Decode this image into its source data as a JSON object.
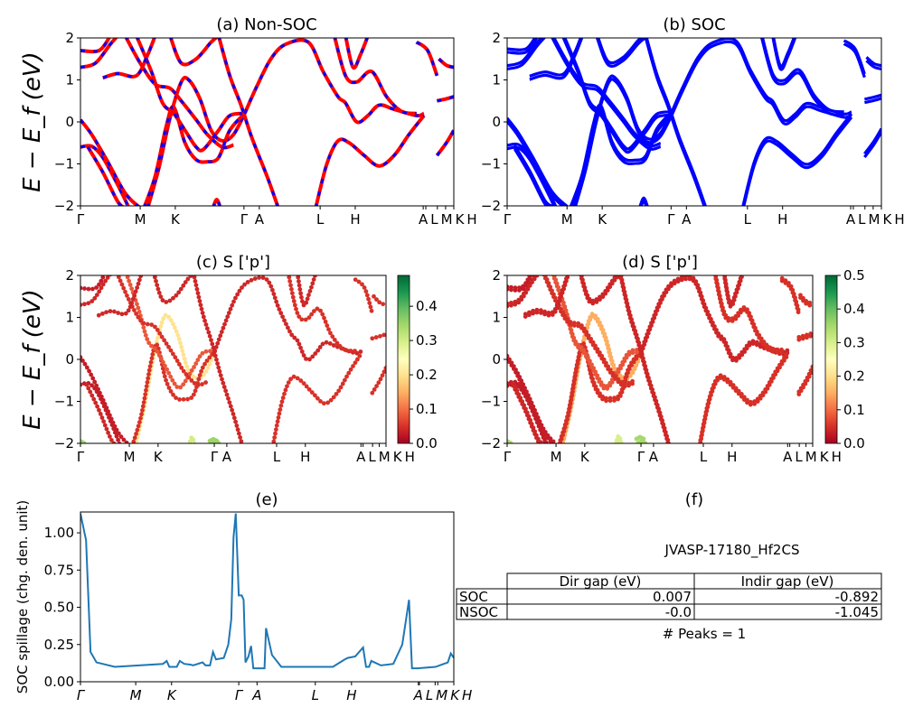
{
  "titles": {
    "a": "(a) Non-SOC",
    "b": "(b) SOC",
    "c": "(c)  S ['p']",
    "d": "(d) S ['p']",
    "e": "(e)",
    "f": "(f)"
  },
  "band_ylabel": "E − E_f (eV)",
  "spillage_ylabel": "SOC spillage (chg. den. unit)",
  "info": {
    "material": "JVASP-17180_Hf2CS",
    "table": {
      "columns": [
        "Dir gap (eV)",
        "Indir gap (eV)"
      ],
      "rows": [
        {
          "label": "SOC",
          "values": [
            "0.007",
            "-0.892"
          ]
        },
        {
          "label": "NSOC",
          "values": [
            "-0.0",
            "-1.045"
          ]
        }
      ]
    },
    "peaks": "# Peaks = 1"
  },
  "colors": {
    "nonsoc_line": "#ff0000",
    "nonsoc_dash": "#0000ff",
    "soc_line": "#0000ff",
    "spillage": "#1f77b4",
    "colormap": "RdYlGn"
  },
  "chart_data": [
    {
      "panel": "a",
      "type": "line",
      "title": "(a) Non-SOC",
      "ylabel": "E − E_f (eV)",
      "ylim": [
        -2,
        2
      ],
      "yticks": [
        "−2",
        "−1",
        "0",
        "1",
        "2"
      ],
      "ytick_values": [
        -2,
        -1,
        0,
        1,
        2
      ],
      "xticks": [
        {
          "k": 0,
          "label": "Γ"
        },
        {
          "k": 0.16,
          "label": "M"
        },
        {
          "k": 0.254,
          "label": "K"
        },
        {
          "k": 0.438,
          "label": "Γ"
        },
        {
          "k": 0.479,
          "label": "A"
        },
        {
          "k": 0.642,
          "label": "L"
        },
        {
          "k": 0.736,
          "label": "H"
        },
        {
          "k": 0.918,
          "label": "A"
        },
        {
          "k": 0.925,
          "label": "L"
        },
        {
          "k": 0.956,
          "label": "M"
        },
        {
          "k": 0.978,
          "label": "K"
        },
        {
          "k": 1.0,
          "label": "H"
        }
      ],
      "bands": [
        [
          [
            0,
            -0.6
          ],
          [
            0.03,
            -0.58
          ],
          [
            0.06,
            -0.85
          ],
          [
            0.1,
            -1.5
          ],
          [
            0.13,
            -2.05
          ]
        ],
        [
          [
            0,
            0.05
          ],
          [
            0.03,
            -0.3
          ],
          [
            0.07,
            -0.9
          ],
          [
            0.12,
            -1.7
          ],
          [
            0.16,
            -2.05
          ]
        ],
        [
          [
            0.02,
            -0.6
          ],
          [
            0.06,
            -1.2
          ],
          [
            0.1,
            -1.9
          ],
          [
            0.12,
            -2.05
          ]
        ],
        [
          [
            0.18,
            -2.05
          ],
          [
            0.21,
            -1.1
          ],
          [
            0.24,
            0.1
          ],
          [
            0.27,
            0.95
          ],
          [
            0.29,
            1.0
          ],
          [
            0.32,
            0.55
          ],
          [
            0.35,
            -0.2
          ],
          [
            0.38,
            -0.45
          ],
          [
            0.41,
            -0.3
          ],
          [
            0.44,
            0.2
          ]
        ],
        [
          [
            0.17,
            -2.05
          ],
          [
            0.2,
            -1.3
          ],
          [
            0.23,
            -0.1
          ],
          [
            0.25,
            0.35
          ],
          [
            0.28,
            -0.5
          ],
          [
            0.31,
            -0.9
          ],
          [
            0.34,
            -0.95
          ],
          [
            0.37,
            -0.85
          ],
          [
            0.4,
            -0.2
          ],
          [
            0.44,
            0.2
          ]
        ],
        [
          [
            0.15,
            2.05
          ],
          [
            0.19,
            1.2
          ],
          [
            0.22,
            0.45
          ],
          [
            0.25,
            0.2
          ],
          [
            0.28,
            -0.2
          ],
          [
            0.31,
            -0.6
          ],
          [
            0.33,
            -0.65
          ],
          [
            0.37,
            -0.2
          ],
          [
            0.4,
            0.15
          ],
          [
            0.44,
            0.2
          ]
        ],
        [
          [
            0.12,
            2.05
          ],
          [
            0.16,
            1.4
          ],
          [
            0.2,
            0.9
          ],
          [
            0.24,
            0.8
          ],
          [
            0.27,
            0.5
          ],
          [
            0.31,
            0.05
          ],
          [
            0.34,
            -0.3
          ],
          [
            0.38,
            -0.6
          ],
          [
            0.41,
            -0.55
          ]
        ],
        [
          [
            0.37,
            2.05
          ],
          [
            0.4,
            1.1
          ],
          [
            0.43,
            0.4
          ],
          [
            0.46,
            -0.4
          ],
          [
            0.5,
            -1.3
          ],
          [
            0.53,
            -2.05
          ]
        ],
        [
          [
            0.44,
            0.2
          ],
          [
            0.47,
            0.8
          ],
          [
            0.51,
            1.5
          ],
          [
            0.55,
            1.85
          ],
          [
            0.61,
            1.9
          ],
          [
            0.65,
            1.2
          ],
          [
            0.69,
            0.6
          ],
          [
            0.71,
            0.45
          ],
          [
            0.74,
            0.0
          ],
          [
            0.77,
            0.15
          ],
          [
            0.8,
            0.4
          ],
          [
            0.84,
            0.3
          ],
          [
            0.9,
            0.15
          ],
          [
            0.92,
            0.2
          ]
        ],
        [
          [
            0.63,
            -2.05
          ],
          [
            0.66,
            -1.0
          ],
          [
            0.69,
            -0.45
          ],
          [
            0.72,
            -0.5
          ],
          [
            0.76,
            -0.8
          ],
          [
            0.8,
            -1.05
          ],
          [
            0.84,
            -0.8
          ],
          [
            0.88,
            -0.3
          ],
          [
            0.92,
            0.15
          ]
        ],
        [
          [
            0.68,
            2.05
          ],
          [
            0.71,
            1.1
          ],
          [
            0.74,
            0.95
          ],
          [
            0.78,
            1.2
          ],
          [
            0.82,
            0.6
          ],
          [
            0.86,
            0.25
          ],
          [
            0.9,
            0.2
          ]
        ],
        [
          [
            0.0,
            1.3
          ],
          [
            0.04,
            1.4
          ],
          [
            0.08,
            1.85
          ],
          [
            0.1,
            2.05
          ]
        ],
        [
          [
            0.0,
            1.7
          ],
          [
            0.05,
            1.7
          ],
          [
            0.08,
            2.05
          ]
        ],
        [
          [
            0.06,
            1.05
          ],
          [
            0.1,
            1.15
          ],
          [
            0.15,
            1.1
          ],
          [
            0.18,
            1.6
          ],
          [
            0.2,
            2.05
          ]
        ],
        [
          [
            0.24,
            2.05
          ],
          [
            0.27,
            1.4
          ],
          [
            0.31,
            1.5
          ],
          [
            0.35,
            1.9
          ],
          [
            0.37,
            2.05
          ]
        ],
        [
          [
            0.71,
            2.05
          ],
          [
            0.73,
            1.3
          ],
          [
            0.75,
            1.6
          ],
          [
            0.77,
            2.05
          ]
        ],
        [
          [
            0.355,
            -2.05
          ],
          [
            0.365,
            -1.85
          ],
          [
            0.375,
            -2.05
          ]
        ],
        [
          [
            0.9,
            1.9
          ],
          [
            0.93,
            1.7
          ],
          [
            0.955,
            1.1
          ]
        ],
        [
          [
            0.955,
            -0.8
          ],
          [
            0.98,
            -0.5
          ],
          [
            1.0,
            -0.2
          ]
        ],
        [
          [
            0.955,
            0.5
          ],
          [
            0.98,
            0.55
          ],
          [
            1.0,
            0.6
          ]
        ],
        [
          [
            0.96,
            1.5
          ],
          [
            0.98,
            1.35
          ],
          [
            1.0,
            1.3
          ]
        ]
      ]
    },
    {
      "panel": "b",
      "type": "line",
      "title": "(b) SOC",
      "ylim": [
        -2,
        2
      ],
      "note_bands": "same k-path as (a)"
    },
    {
      "panel": "c",
      "type": "scatter",
      "title": "(c)  S ['p']",
      "ylabel": "E − E_f (eV)",
      "ylim": [
        -2,
        2
      ],
      "colorbar": {
        "min": 0.0,
        "max": 0.49,
        "ticks": [
          "0.0",
          "0.1",
          "0.2",
          "0.3",
          "0.4"
        ],
        "tick_values": [
          0,
          0.1,
          0.2,
          0.3,
          0.4
        ]
      },
      "band_S": [
        0.03,
        0.03,
        0.04,
        0.2,
        0.05,
        0.08,
        0.05,
        0.04,
        0.04,
        0.05,
        0.05,
        0.04,
        0.03,
        0.04,
        0.04,
        0.04,
        0.3,
        0.05,
        0.05,
        0.05,
        0.05
      ],
      "extra_points": [
        [
          0.0,
          -1.95,
          0.35
        ],
        [
          0.435,
          -1.9,
          0.35
        ],
        [
          0.44,
          -1.95,
          0.35
        ]
      ]
    },
    {
      "panel": "d",
      "type": "scatter",
      "title": "(d) S ['p']",
      "ylim": [
        -2,
        2
      ],
      "colorbar": {
        "min": 0.0,
        "max": 0.5,
        "ticks": [
          "0.0",
          "0.1",
          "0.2",
          "0.3",
          "0.4",
          "0.5"
        ],
        "tick_values": [
          0,
          0.1,
          0.2,
          0.3,
          0.4,
          0.5
        ]
      },
      "band_S": [
        0.03,
        0.03,
        0.04,
        0.15,
        0.05,
        0.08,
        0.05,
        0.04,
        0.04,
        0.05,
        0.05,
        0.04,
        0.03,
        0.04,
        0.04,
        0.04,
        0.3,
        0.05,
        0.05,
        0.05,
        0.05
      ],
      "extra_points": [
        [
          0.0,
          -1.95,
          0.35
        ],
        [
          0.435,
          -1.85,
          0.35
        ],
        [
          0.44,
          -1.95,
          0.35
        ]
      ]
    },
    {
      "panel": "e",
      "type": "line",
      "title": "(e)",
      "ylabel": "SOC spillage (chg. den. unit)",
      "ylim": [
        0,
        1.14
      ],
      "yticks": [
        "0.00",
        "0.25",
        "0.50",
        "0.75",
        "1.00"
      ],
      "ytick_values": [
        0,
        0.25,
        0.5,
        0.75,
        1.0
      ],
      "xticks": [
        {
          "k": 0,
          "label": "Γ"
        },
        {
          "k": 0.148,
          "label": "M"
        },
        {
          "k": 0.244,
          "label": "K"
        },
        {
          "k": 0.424,
          "label": "Γ"
        },
        {
          "k": 0.473,
          "label": "A"
        },
        {
          "k": 0.629,
          "label": "L"
        },
        {
          "k": 0.726,
          "label": "H"
        },
        {
          "k": 0.905,
          "label": "A"
        },
        {
          "k": 0.908,
          "label": "L"
        },
        {
          "k": 0.95,
          "label": "M"
        },
        {
          "k": 0.957,
          "label": "K"
        },
        {
          "k": 1.0,
          "label": "H"
        }
      ],
      "x": [
        0,
        0.015,
        0.027,
        0.043,
        0.092,
        0.221,
        0.231,
        0.238,
        0.258,
        0.266,
        0.278,
        0.294,
        0.302,
        0.327,
        0.335,
        0.347,
        0.355,
        0.363,
        0.384,
        0.396,
        0.404,
        0.41,
        0.416,
        0.424,
        0.432,
        0.437,
        0.442,
        0.45,
        0.457,
        0.463,
        0.493,
        0.497,
        0.513,
        0.538,
        0.676,
        0.708,
        0.716,
        0.736,
        0.757,
        0.765,
        0.773,
        0.779,
        0.805,
        0.838,
        0.862,
        0.88,
        0.888,
        0.903,
        0.951,
        0.984,
        0.992,
        1.0
      ],
      "y": [
        1.13,
        0.95,
        0.2,
        0.13,
        0.1,
        0.12,
        0.14,
        0.1,
        0.1,
        0.14,
        0.12,
        0.115,
        0.11,
        0.13,
        0.11,
        0.11,
        0.2,
        0.15,
        0.16,
        0.25,
        0.42,
        0.97,
        1.13,
        0.58,
        0.58,
        0.55,
        0.13,
        0.17,
        0.24,
        0.09,
        0.09,
        0.36,
        0.18,
        0.1,
        0.1,
        0.15,
        0.16,
        0.17,
        0.23,
        0.1,
        0.1,
        0.14,
        0.11,
        0.12,
        0.25,
        0.55,
        0.09,
        0.09,
        0.1,
        0.13,
        0.19,
        0.16
      ]
    }
  ]
}
